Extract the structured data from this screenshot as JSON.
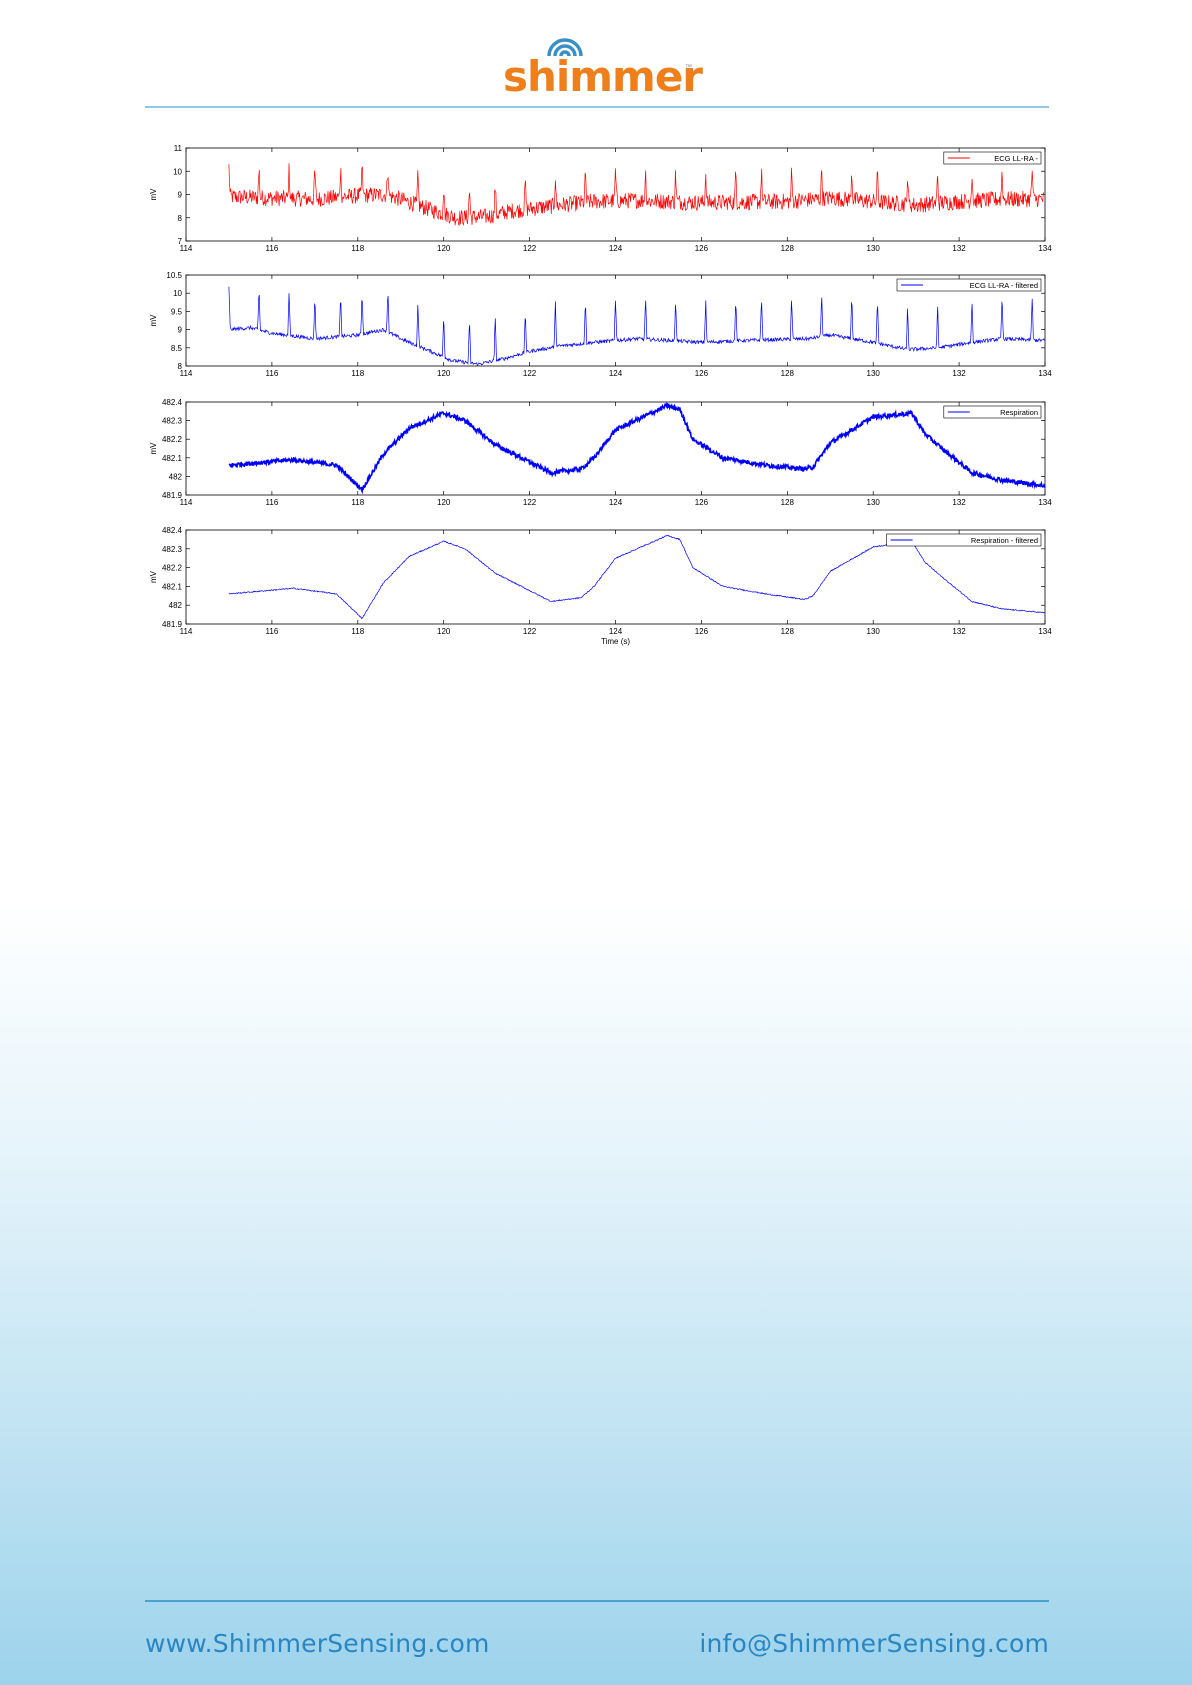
{
  "brand": {
    "name": "shimmer",
    "tm": "™",
    "color": "#ef7f1a",
    "icon_color": "#3a8fc7"
  },
  "footer": {
    "website": "www.ShimmerSensing.com",
    "email": "info@ShimmerSensing.com",
    "color": "#2a86c2"
  },
  "chart_data": [
    {
      "type": "line",
      "legend": "ECG LL-RA -",
      "legend_position": "top-right",
      "ylabel": "mV",
      "xlabel": "",
      "xlim": [
        114,
        134
      ],
      "ylim": [
        7,
        11
      ],
      "xticks": [
        "114",
        "116",
        "118",
        "120",
        "122",
        "124",
        "126",
        "128",
        "130",
        "132",
        "134"
      ],
      "yticks": [
        "7",
        "8",
        "9",
        "10",
        "11"
      ],
      "color": "#ff0000",
      "noise": 0.35,
      "baseline": [
        [
          115,
          8.9
        ],
        [
          116,
          8.85
        ],
        [
          117,
          8.8
        ],
        [
          118,
          8.95
        ],
        [
          118.6,
          9.0
        ],
        [
          119,
          8.8
        ],
        [
          119.6,
          8.4
        ],
        [
          120.3,
          8.0
        ],
        [
          121,
          8.05
        ],
        [
          121.6,
          8.3
        ],
        [
          122.5,
          8.5
        ],
        [
          123.5,
          8.7
        ],
        [
          124.5,
          8.75
        ],
        [
          126,
          8.65
        ],
        [
          128,
          8.7
        ],
        [
          129,
          8.85
        ],
        [
          130,
          8.7
        ],
        [
          131,
          8.55
        ],
        [
          132,
          8.7
        ],
        [
          133,
          8.8
        ],
        [
          134,
          8.8
        ]
      ],
      "spikes": [
        115,
        115.7,
        116.4,
        117.0,
        117.6,
        118.1,
        118.7,
        119.4,
        120.0,
        120.6,
        121.2,
        121.9,
        122.6,
        123.3,
        124.0,
        124.7,
        125.4,
        126.1,
        126.8,
        127.4,
        128.1,
        128.8,
        129.5,
        130.1,
        130.8,
        131.5,
        132.3,
        133.0,
        133.7
      ],
      "spike_height": 1.3
    },
    {
      "type": "line",
      "legend": "ECG LL-RA - filtered",
      "legend_position": "top-right",
      "ylabel": "mV",
      "xlabel": "",
      "xlim": [
        114,
        134
      ],
      "ylim": [
        8,
        10.5
      ],
      "xticks": [
        "114",
        "116",
        "118",
        "120",
        "122",
        "124",
        "126",
        "128",
        "130",
        "132",
        "134"
      ],
      "yticks": [
        "8",
        "8.5",
        "9",
        "9.5",
        "10",
        "10.5"
      ],
      "color": "#0000ff",
      "noise": 0.05,
      "baseline": [
        [
          115,
          9.0
        ],
        [
          115.5,
          9.05
        ],
        [
          116,
          8.9
        ],
        [
          117,
          8.75
        ],
        [
          118,
          8.85
        ],
        [
          118.6,
          9.0
        ],
        [
          119,
          8.75
        ],
        [
          119.6,
          8.45
        ],
        [
          120.2,
          8.15
        ],
        [
          120.8,
          8.05
        ],
        [
          121.4,
          8.2
        ],
        [
          122,
          8.4
        ],
        [
          122.7,
          8.55
        ],
        [
          123.5,
          8.65
        ],
        [
          124.5,
          8.75
        ],
        [
          126,
          8.65
        ],
        [
          127,
          8.7
        ],
        [
          128.5,
          8.75
        ],
        [
          129,
          8.85
        ],
        [
          130,
          8.65
        ],
        [
          130.8,
          8.45
        ],
        [
          131.5,
          8.5
        ],
        [
          132.3,
          8.65
        ],
        [
          133,
          8.75
        ],
        [
          134,
          8.7
        ]
      ],
      "spikes": [
        115,
        115.7,
        116.4,
        117.0,
        117.6,
        118.1,
        118.7,
        119.4,
        120.0,
        120.6,
        121.2,
        121.9,
        122.6,
        123.3,
        124.0,
        124.7,
        125.4,
        126.1,
        126.8,
        127.4,
        128.1,
        128.8,
        129.5,
        130.1,
        130.8,
        131.5,
        132.3,
        133.0,
        133.7
      ],
      "spike_height": 1.2
    },
    {
      "type": "line",
      "legend": "Respiration",
      "legend_position": "top-right",
      "ylabel": "mV",
      "xlabel": "",
      "xlim": [
        114,
        134
      ],
      "ylim": [
        481.9,
        482.4
      ],
      "xticks": [
        "114",
        "116",
        "118",
        "120",
        "122",
        "124",
        "126",
        "128",
        "130",
        "132",
        "134"
      ],
      "yticks": [
        "481.9",
        "482",
        "482.1",
        "482.2",
        "482.3",
        "482.4"
      ],
      "color": "#0000ff",
      "noise": 0.012,
      "thick": true,
      "baseline": [
        [
          115,
          482.06
        ],
        [
          116.5,
          482.09
        ],
        [
          117.5,
          482.06
        ],
        [
          118.1,
          481.93
        ],
        [
          118.6,
          482.12
        ],
        [
          119.2,
          482.26
        ],
        [
          120,
          482.34
        ],
        [
          120.5,
          482.3
        ],
        [
          121.2,
          482.17
        ],
        [
          122.5,
          482.02
        ],
        [
          123.2,
          482.04
        ],
        [
          123.5,
          482.1
        ],
        [
          124,
          482.25
        ],
        [
          125.2,
          482.38
        ],
        [
          125.5,
          482.36
        ],
        [
          125.8,
          482.2
        ],
        [
          126.5,
          482.1
        ],
        [
          127.5,
          482.06
        ],
        [
          128.4,
          482.04
        ],
        [
          128.6,
          482.05
        ],
        [
          129.0,
          482.18
        ],
        [
          130,
          482.32
        ],
        [
          130.9,
          482.34
        ],
        [
          131.2,
          482.23
        ],
        [
          131.6,
          482.15
        ],
        [
          132.3,
          482.02
        ],
        [
          133,
          481.98
        ],
        [
          134,
          481.95
        ]
      ]
    },
    {
      "type": "line",
      "legend": "Respiration - filtered",
      "legend_position": "top-right",
      "ylabel": "mV",
      "xlabel": "Time (s)",
      "xlim": [
        114,
        134
      ],
      "ylim": [
        481.9,
        482.4
      ],
      "xticks": [
        "114",
        "116",
        "118",
        "120",
        "122",
        "124",
        "126",
        "128",
        "130",
        "132",
        "134"
      ],
      "yticks": [
        "481.9",
        "482",
        "482.1",
        "482.2",
        "482.3",
        "482.4"
      ],
      "color": "#0000ff",
      "noise": 0.003,
      "baseline": [
        [
          115,
          482.06
        ],
        [
          116.5,
          482.09
        ],
        [
          117.5,
          482.06
        ],
        [
          118.1,
          481.93
        ],
        [
          118.6,
          482.12
        ],
        [
          119.2,
          482.26
        ],
        [
          120,
          482.34
        ],
        [
          120.5,
          482.3
        ],
        [
          121.2,
          482.17
        ],
        [
          122.5,
          482.02
        ],
        [
          123.2,
          482.04
        ],
        [
          123.5,
          482.1
        ],
        [
          124,
          482.25
        ],
        [
          125.2,
          482.37
        ],
        [
          125.5,
          482.35
        ],
        [
          125.8,
          482.2
        ],
        [
          126.5,
          482.1
        ],
        [
          127.5,
          482.06
        ],
        [
          128.4,
          482.03
        ],
        [
          128.6,
          482.05
        ],
        [
          129.0,
          482.18
        ],
        [
          130,
          482.31
        ],
        [
          130.9,
          482.34
        ],
        [
          131.2,
          482.23
        ],
        [
          131.6,
          482.15
        ],
        [
          132.3,
          482.02
        ],
        [
          133,
          481.98
        ],
        [
          134,
          481.96
        ]
      ]
    }
  ]
}
